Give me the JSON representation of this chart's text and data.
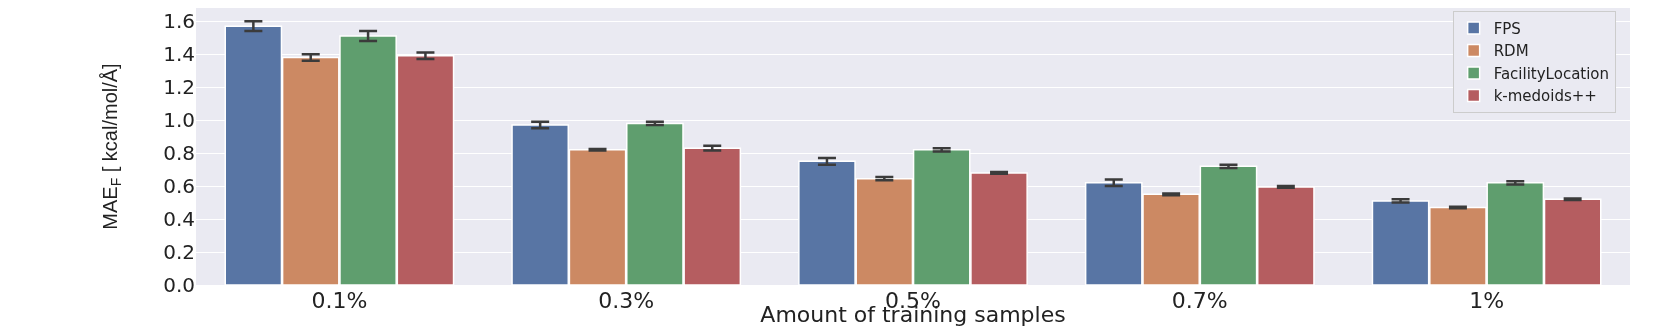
{
  "chart_data": {
    "type": "bar",
    "xlabel": "Amount of training samples",
    "ylabel": "MAE$_{F}$ [ kcal/mol/Å]",
    "categories": [
      "0.1%",
      "0.3%",
      "0.5%",
      "0.7%",
      "1%"
    ],
    "series": [
      {
        "name": "FPS",
        "color": "#5875a4",
        "values": [
          1.57,
          0.97,
          0.75,
          0.62,
          0.51
        ],
        "errors": [
          0.03,
          0.02,
          0.02,
          0.02,
          0.01
        ]
      },
      {
        "name": "RDM",
        "color": "#cc8963",
        "values": [
          1.38,
          0.82,
          0.645,
          0.55,
          0.47
        ],
        "errors": [
          0.02,
          0.005,
          0.01,
          0.005,
          0.005
        ]
      },
      {
        "name": "FacilityLocation",
        "color": "#5f9e6e",
        "values": [
          1.51,
          0.98,
          0.82,
          0.72,
          0.62
        ],
        "errors": [
          0.03,
          0.01,
          0.01,
          0.01,
          0.01
        ]
      },
      {
        "name": "k-medoids++",
        "color": "#b55d60",
        "values": [
          1.39,
          0.83,
          0.68,
          0.595,
          0.52
        ],
        "errors": [
          0.02,
          0.015,
          0.005,
          0.005,
          0.005
        ]
      }
    ],
    "ylim": [
      0,
      1.68
    ],
    "yticks": [
      {
        "value": 0,
        "label": "0.0"
      },
      0.2,
      0.4,
      0.6,
      0.8,
      {
        "value": 1,
        "label": "1.0"
      },
      1.2,
      1.4,
      1.6
    ],
    "grid": "y",
    "legend": "top right"
  }
}
